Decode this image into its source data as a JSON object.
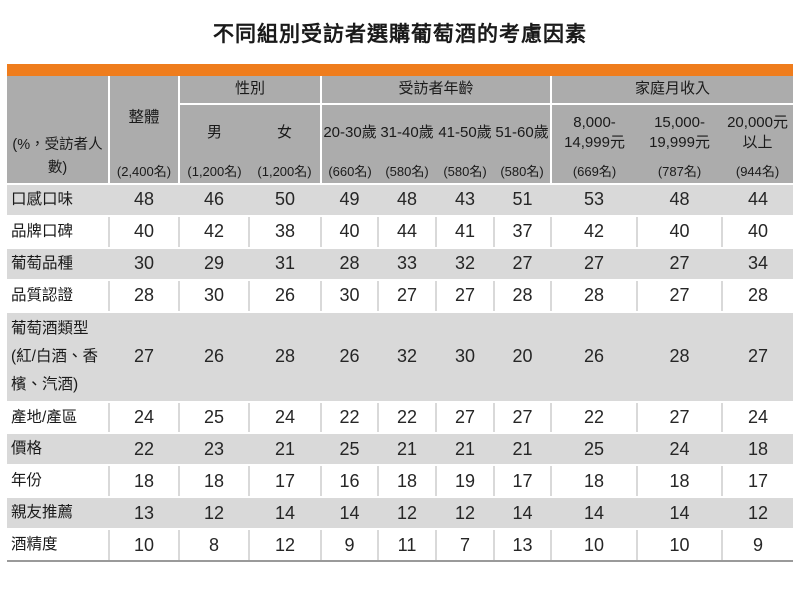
{
  "colors": {
    "accent_bar": "#EF7D1D",
    "header_bg": "#ACACAC",
    "band_bg": "#D9D9D9",
    "bottom_line": "#9A9A9A"
  },
  "chart_data": {
    "type": "table",
    "title": "不同組別受訪者選購葡萄酒的考慮因素",
    "corner_label": "(%，受訪者人數)",
    "overall": {
      "label": "整體",
      "sample": "(2,400名)"
    },
    "groups": [
      {
        "label": "性別",
        "columns": [
          {
            "label": "男",
            "sample": "(1,200名)"
          },
          {
            "label": "女",
            "sample": "(1,200名)"
          }
        ]
      },
      {
        "label": "受訪者年齡",
        "columns": [
          {
            "label": "20-30歲",
            "sample": "(660名)"
          },
          {
            "label": "31-40歲",
            "sample": "(580名)"
          },
          {
            "label": "41-50歲",
            "sample": "(580名)"
          },
          {
            "label": "51-60歲",
            "sample": "(580名)"
          }
        ]
      },
      {
        "label": "家庭月收入",
        "columns": [
          {
            "label": "8,000-14,999元",
            "sample": "(669名)"
          },
          {
            "label": "15,000-19,999元",
            "sample": "(787名)"
          },
          {
            "label": "20,000元以上",
            "sample": "(944名)"
          }
        ]
      }
    ],
    "rows": [
      {
        "label": "口感口味",
        "values": [
          48,
          46,
          50,
          49,
          48,
          43,
          51,
          53,
          48,
          44
        ]
      },
      {
        "label": "品牌口碑",
        "values": [
          40,
          42,
          38,
          40,
          44,
          41,
          37,
          42,
          40,
          40
        ]
      },
      {
        "label": "葡萄品種",
        "values": [
          30,
          29,
          31,
          28,
          33,
          32,
          27,
          27,
          27,
          34
        ]
      },
      {
        "label": "品質認證",
        "values": [
          28,
          30,
          26,
          30,
          27,
          27,
          28,
          28,
          27,
          28
        ]
      },
      {
        "label": "葡萄酒類型(紅/白酒、香檳、汽酒)",
        "values": [
          27,
          26,
          28,
          26,
          32,
          30,
          20,
          26,
          28,
          27
        ]
      },
      {
        "label": "產地/產區",
        "values": [
          24,
          25,
          24,
          22,
          22,
          27,
          27,
          22,
          27,
          24
        ]
      },
      {
        "label": "價格",
        "values": [
          22,
          23,
          21,
          25,
          21,
          21,
          21,
          25,
          24,
          18
        ]
      },
      {
        "label": "年份",
        "values": [
          18,
          18,
          17,
          16,
          18,
          19,
          17,
          18,
          18,
          17
        ]
      },
      {
        "label": "親友推薦",
        "values": [
          13,
          12,
          14,
          14,
          12,
          12,
          14,
          14,
          14,
          12
        ]
      },
      {
        "label": "酒精度",
        "values": [
          10,
          8,
          12,
          9,
          11,
          7,
          13,
          10,
          10,
          9
        ]
      }
    ]
  }
}
